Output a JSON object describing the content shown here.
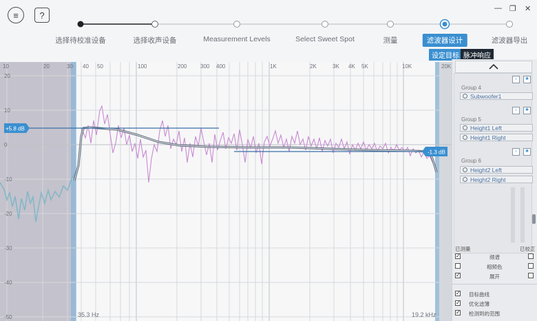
{
  "toolbar": {
    "menu_icon": "menu-icon",
    "help_label": "?"
  },
  "window": {
    "minimize": "—",
    "restore": "❐",
    "close": "✕"
  },
  "steps": [
    {
      "label": "选择待校准设备"
    },
    {
      "label": "选择收声设备"
    },
    {
      "label": "Measurement Levels"
    },
    {
      "label": "Select Sweet Spot"
    },
    {
      "label": "测量"
    },
    {
      "label": "滤波器设计"
    },
    {
      "label": "滤波器导出"
    }
  ],
  "subtabs": {
    "target": "设定目标",
    "impulse": "脉冲响应"
  },
  "graph": {
    "x_ticks": [
      "10",
      "20",
      "30",
      "40",
      "50",
      "100",
      "200",
      "300",
      "400",
      "1K",
      "2K",
      "3K",
      "4K",
      "5K",
      "10K",
      "20K"
    ],
    "y_ticks": [
      "20",
      "10",
      "0",
      "-10",
      "-20",
      "-30",
      "-40",
      "-50"
    ],
    "left_marker": "+5.8 dB",
    "right_marker": "-1.3 dB",
    "low_freq": "35.3 Hz",
    "high_freq": "19.2 kHz"
  },
  "panel": {
    "groups": [
      {
        "name": "Group 4",
        "channels": [
          "Subwoofer1"
        ]
      },
      {
        "name": "Group 5",
        "channels": [
          "Height1 Left",
          "Height1 Right"
        ]
      },
      {
        "name": "Group 6",
        "channels": [
          "Height2 Left",
          "Height2 Right"
        ]
      }
    ],
    "header_left": "已测量",
    "header_right": "已校正",
    "mid_options": [
      "频谱",
      "相频色",
      "展开"
    ],
    "bottom_options": [
      "目标曲线",
      "优化滤薄",
      "检测到的范围"
    ]
  },
  "colors": {
    "accent": "#3a8fd0",
    "measured": "#c88ad1",
    "target": "#3a4a5e"
  }
}
